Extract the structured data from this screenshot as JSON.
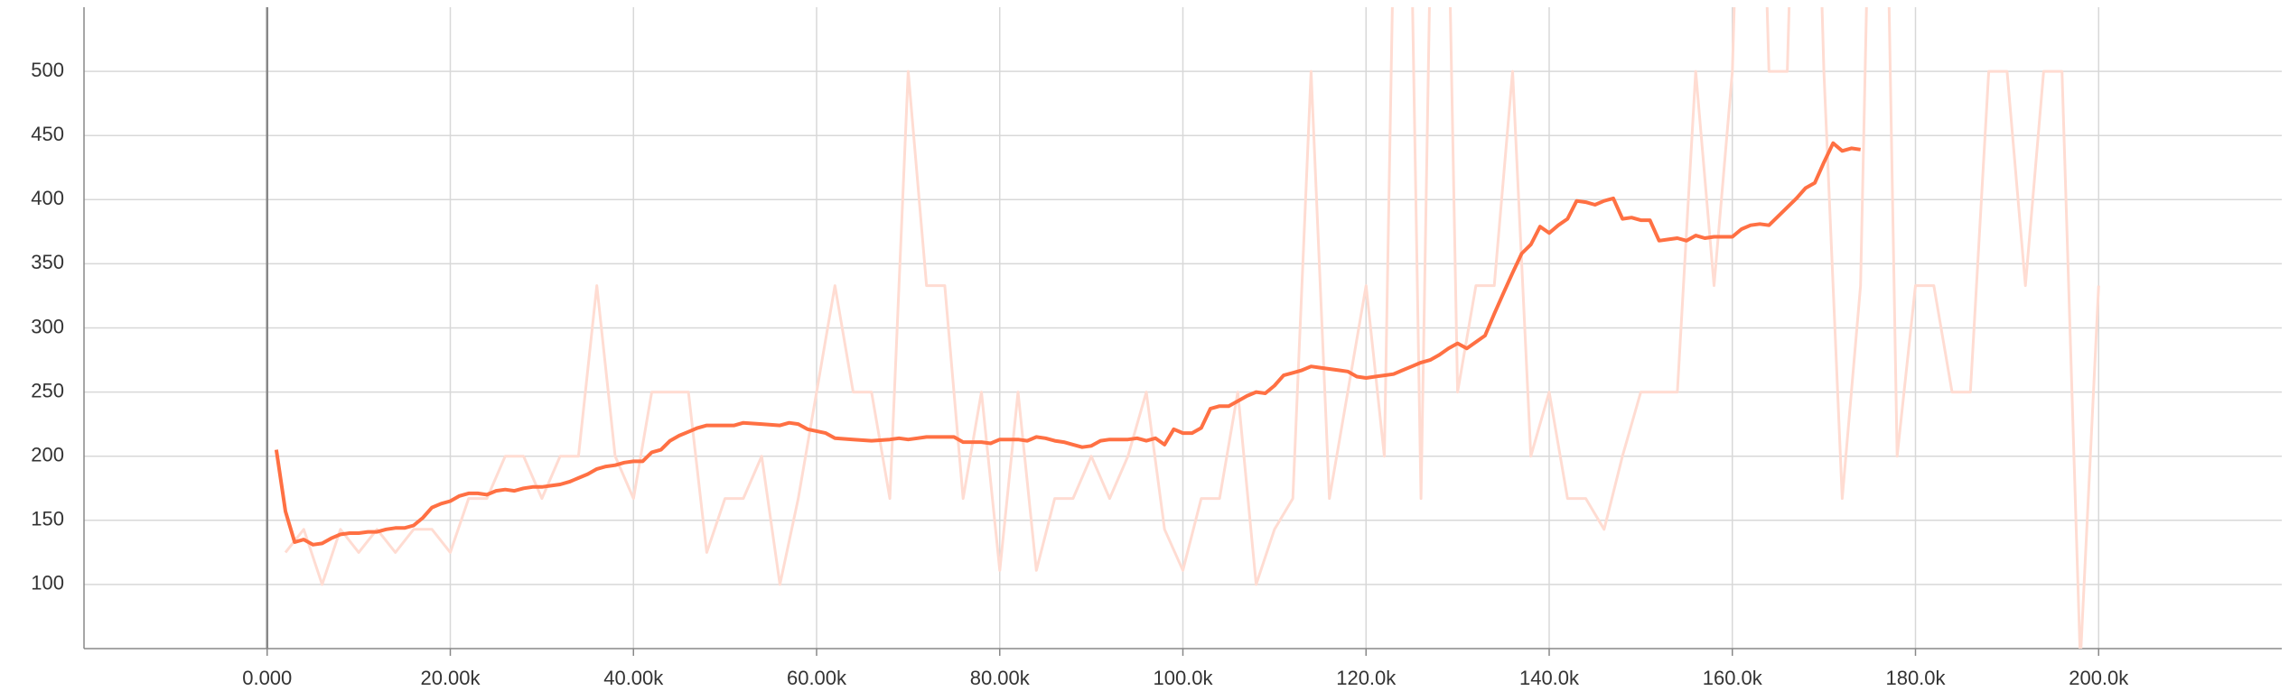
{
  "chart_data": {
    "type": "line",
    "grid": true,
    "xlim": [
      -20000,
      220000
    ],
    "ylim": [
      50,
      550
    ],
    "xticks": [
      {
        "value": 0,
        "label": "0.000"
      },
      {
        "value": 20000,
        "label": "20.00k"
      },
      {
        "value": 40000,
        "label": "40.00k"
      },
      {
        "value": 60000,
        "label": "60.00k"
      },
      {
        "value": 80000,
        "label": "80.00k"
      },
      {
        "value": 100000,
        "label": "100.0k"
      },
      {
        "value": 120000,
        "label": "120.0k"
      },
      {
        "value": 140000,
        "label": "140.0k"
      },
      {
        "value": 160000,
        "label": "160.0k"
      },
      {
        "value": 180000,
        "label": "180.0k"
      },
      {
        "value": 200000,
        "label": "200.0k"
      }
    ],
    "yticks": [
      100,
      150,
      200,
      250,
      300,
      350,
      400,
      450,
      500
    ],
    "series": [
      {
        "color": "#ffdcd2",
        "x": [
          2000,
          4000,
          6000,
          8000,
          10000,
          12000,
          14000,
          16000,
          18000,
          20000,
          22000,
          24000,
          26000,
          28000,
          30000,
          32000,
          34000,
          36000,
          38000,
          40000,
          42000,
          44000,
          46000,
          48000,
          50000,
          52000,
          54000,
          56000,
          58000,
          60000,
          62000,
          64000,
          66000,
          68000,
          70000,
          72000,
          74000,
          76000,
          78000,
          80000,
          82000,
          84000,
          86000,
          88000,
          90000,
          92000,
          94000,
          96000,
          98000,
          100000,
          102000,
          104000,
          106000,
          108000,
          110000,
          112000,
          114000,
          116000,
          118000,
          120000,
          122000,
          124000,
          126000,
          128000,
          130000,
          132000,
          134000,
          136000,
          138000,
          140000,
          142000,
          144000,
          146000,
          148000,
          150000,
          152000,
          154000,
          156000,
          158000,
          160000,
          162000,
          164000,
          166000,
          168000,
          170000,
          172000,
          174000,
          176000,
          178000,
          180000,
          182000,
          184000,
          186000,
          188000,
          190000,
          192000,
          194000,
          196000,
          198000,
          200000
        ],
        "values": [
          125,
          143,
          100,
          143,
          125,
          143,
          125,
          143,
          143,
          125,
          167,
          167,
          200,
          200,
          167,
          200,
          200,
          333,
          200,
          167,
          250,
          250,
          250,
          125,
          167,
          167,
          200,
          100,
          167,
          250,
          333,
          250,
          250,
          167,
          500,
          333,
          333,
          167,
          250,
          111,
          250,
          111,
          167,
          167,
          200,
          167,
          200,
          250,
          143,
          111,
          167,
          167,
          250,
          100,
          143,
          167,
          500,
          167,
          250,
          333,
          200,
          1000,
          167,
          1000,
          250,
          333,
          333,
          500,
          200,
          250,
          167,
          167,
          143,
          200,
          250,
          250,
          250,
          500,
          333,
          500,
          1000,
          500,
          500,
          1000,
          500,
          167,
          333,
          1000,
          200,
          333,
          333,
          250,
          250,
          500,
          500,
          333,
          500,
          500,
          40,
          333
        ]
      },
      {
        "color": "#ff7043",
        "x": [
          1000,
          2000,
          3000,
          4000,
          5000,
          6000,
          7000,
          8000,
          9000,
          10000,
          11000,
          12000,
          13000,
          14000,
          15000,
          16000,
          17000,
          18000,
          19000,
          20000,
          21000,
          22000,
          23000,
          24000,
          25000,
          26000,
          27000,
          28000,
          29000,
          30000,
          31000,
          32000,
          33000,
          34000,
          35000,
          36000,
          37000,
          38000,
          39000,
          40000,
          41000,
          42000,
          43000,
          44000,
          45000,
          46000,
          47000,
          48000,
          50000,
          51000,
          52000,
          54000,
          56000,
          57000,
          58000,
          59000,
          61000,
          62000,
          64000,
          66000,
          68000,
          69000,
          70000,
          72000,
          75000,
          76000,
          78000,
          79000,
          80000,
          82000,
          83000,
          84000,
          85000,
          86000,
          87000,
          88000,
          89000,
          90000,
          91000,
          92000,
          94000,
          95000,
          96000,
          97000,
          98000,
          99000,
          100000,
          101000,
          102000,
          103000,
          104000,
          105000,
          106000,
          107000,
          108000,
          109000,
          110000,
          111000,
          112000,
          113000,
          114000,
          115000,
          116000,
          117000,
          118000,
          119000,
          120000,
          121000,
          122000,
          123000,
          124000,
          125000,
          126000,
          127000,
          128000,
          129000,
          130000,
          131000,
          132000,
          133000,
          134000,
          135000,
          136000,
          137000,
          138000,
          139000,
          140000,
          141000,
          142000,
          143000,
          144000,
          145000,
          146000,
          147000,
          148000,
          149000,
          150000,
          151000,
          152000,
          153000,
          154000,
          155000,
          156000,
          157000,
          158000,
          159000,
          160000,
          161000,
          162000,
          163000,
          164000,
          165000,
          166000,
          167000,
          168000,
          169000,
          170000,
          171000,
          172000,
          173000,
          174000
        ],
        "values": [
          205,
          157,
          133,
          135,
          131,
          132,
          136,
          139,
          140,
          140,
          141,
          141,
          143,
          144,
          144,
          146,
          152,
          160,
          163,
          165,
          169,
          171,
          171,
          170,
          173,
          174,
          173,
          175,
          176,
          176,
          177,
          178,
          180,
          183,
          186,
          190,
          192,
          193,
          195,
          196,
          196,
          203,
          205,
          212,
          216,
          219,
          222,
          224,
          224,
          224,
          226,
          225,
          224,
          226,
          225,
          221,
          218,
          214,
          213,
          212,
          213,
          214,
          213,
          215,
          215,
          211,
          211,
          210,
          213,
          213,
          212,
          215,
          214,
          212,
          211,
          209,
          207,
          208,
          212,
          213,
          213,
          214,
          212,
          214,
          209,
          221,
          218,
          218,
          222,
          237,
          239,
          239,
          243,
          247,
          250,
          249,
          255,
          263,
          265,
          267,
          270,
          269,
          268,
          267,
          266,
          262,
          261,
          262,
          263,
          264,
          267,
          270,
          273,
          275,
          279,
          284,
          288,
          284,
          289,
          294,
          311,
          327,
          343,
          358,
          365,
          379,
          374,
          380,
          385,
          399,
          398,
          396,
          399,
          401,
          385,
          386,
          384,
          384,
          368,
          369,
          370,
          368,
          372,
          370,
          371,
          371,
          371,
          377,
          380,
          381,
          380,
          387,
          394,
          401,
          409,
          413,
          429,
          444,
          438,
          440,
          439
        ]
      }
    ]
  }
}
